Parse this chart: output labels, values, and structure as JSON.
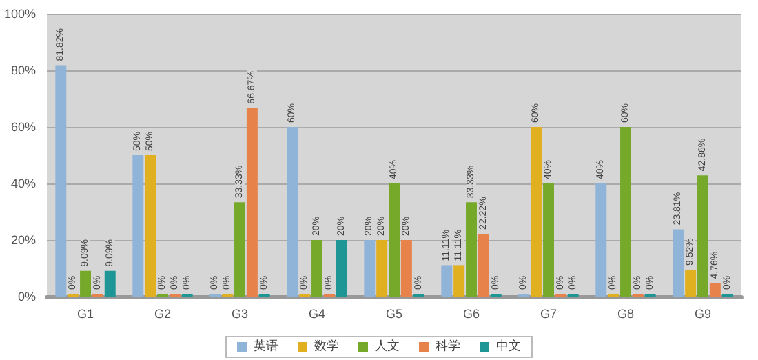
{
  "chart_data": {
    "type": "bar",
    "categories": [
      "G1",
      "G2",
      "G3",
      "G4",
      "G5",
      "G6",
      "G7",
      "G8",
      "G9"
    ],
    "series": [
      {
        "name": "英语",
        "color": "#8fb4d8",
        "values": [
          81.82,
          50,
          0,
          60,
          20,
          11.11,
          0,
          40,
          23.81
        ],
        "value_labels": [
          "81.82%",
          "50%",
          "0%",
          "60%",
          "20%",
          "11.11%",
          "0%",
          "40%",
          "23.81%"
        ]
      },
      {
        "name": "数学",
        "color": "#e0b020",
        "values": [
          0,
          50,
          0,
          0,
          20,
          11.11,
          60,
          0,
          9.52
        ],
        "value_labels": [
          "0%",
          "50%",
          "0%",
          "0%",
          "20%",
          "11.11%",
          "60%",
          "0%",
          "9.52%"
        ]
      },
      {
        "name": "人文",
        "color": "#76a82a",
        "values": [
          9.09,
          0,
          33.33,
          20,
          40,
          33.33,
          40,
          60,
          42.86
        ],
        "value_labels": [
          "9.09%",
          "0%",
          "33.33%",
          "20%",
          "40%",
          "33.33%",
          "40%",
          "60%",
          "42.86%"
        ]
      },
      {
        "name": "科学",
        "color": "#e6824a",
        "values": [
          0,
          0,
          66.67,
          0,
          20,
          22.22,
          0,
          0,
          4.76
        ],
        "value_labels": [
          "0%",
          "0%",
          "66.67%",
          "0%",
          "20%",
          "22.22%",
          "0%",
          "0%",
          "4.76%"
        ]
      },
      {
        "name": "中文",
        "color": "#1f9696",
        "values": [
          9.09,
          0,
          0,
          20,
          0,
          0,
          0,
          0,
          0
        ],
        "value_labels": [
          "9.09%",
          "0%",
          "0%",
          "20%",
          "0%",
          "0%",
          "0%",
          "0%",
          "0%"
        ]
      }
    ],
    "ylim": [
      0,
      100
    ],
    "yticks": [
      {
        "value": 0,
        "label": "0%"
      },
      {
        "value": 20,
        "label": "20%"
      },
      {
        "value": 40,
        "label": "40%"
      },
      {
        "value": 60,
        "label": "60%"
      },
      {
        "value": 80,
        "label": "80%"
      },
      {
        "value": 100,
        "label": "100%"
      }
    ],
    "grid": "y",
    "legend": "bottom"
  }
}
